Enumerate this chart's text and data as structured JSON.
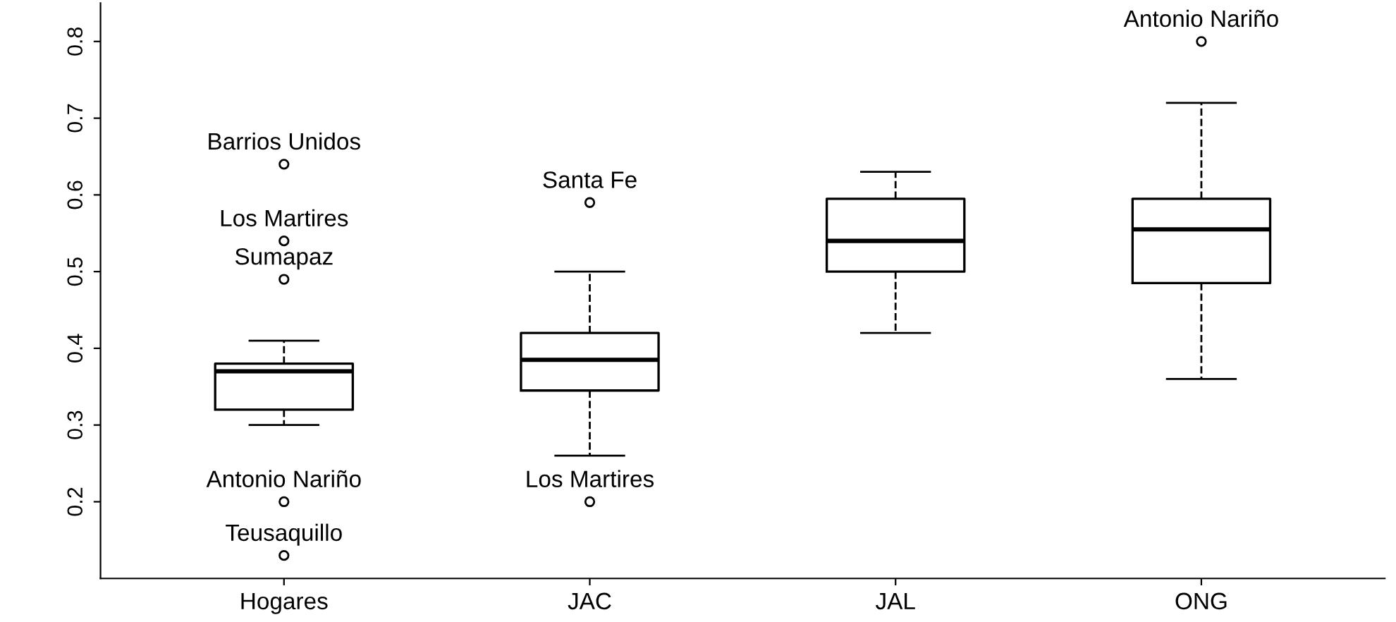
{
  "chart_data": {
    "type": "box",
    "categories": [
      "Hogares",
      "JAC",
      "JAL",
      "ONG"
    ],
    "boxes": [
      {
        "low": 0.3,
        "q1": 0.32,
        "median": 0.37,
        "q3": 0.38,
        "high": 0.41,
        "outliers": [
          0.64,
          0.54,
          0.49,
          0.2,
          0.13
        ]
      },
      {
        "low": 0.26,
        "q1": 0.345,
        "median": 0.385,
        "q3": 0.42,
        "high": 0.5,
        "outliers": [
          0.59,
          0.2
        ]
      },
      {
        "low": 0.42,
        "q1": 0.5,
        "median": 0.54,
        "q3": 0.595,
        "high": 0.63
      },
      {
        "low": 0.36,
        "q1": 0.485,
        "median": 0.555,
        "q3": 0.595,
        "high": 0.72,
        "outliers": [
          0.8
        ]
      }
    ],
    "ylim": [
      0.1,
      0.85
    ],
    "yticks": [
      0.2,
      0.3,
      0.4,
      0.5,
      0.6,
      0.7,
      0.8
    ],
    "grid": false,
    "annotations": [
      "Barrios Unidos",
      "Los Martires",
      "Sumapaz",
      "Antonio Nariño",
      "Teusaquillo",
      "Santa Fe",
      "Los Martires",
      "Antonio Nariño"
    ]
  }
}
